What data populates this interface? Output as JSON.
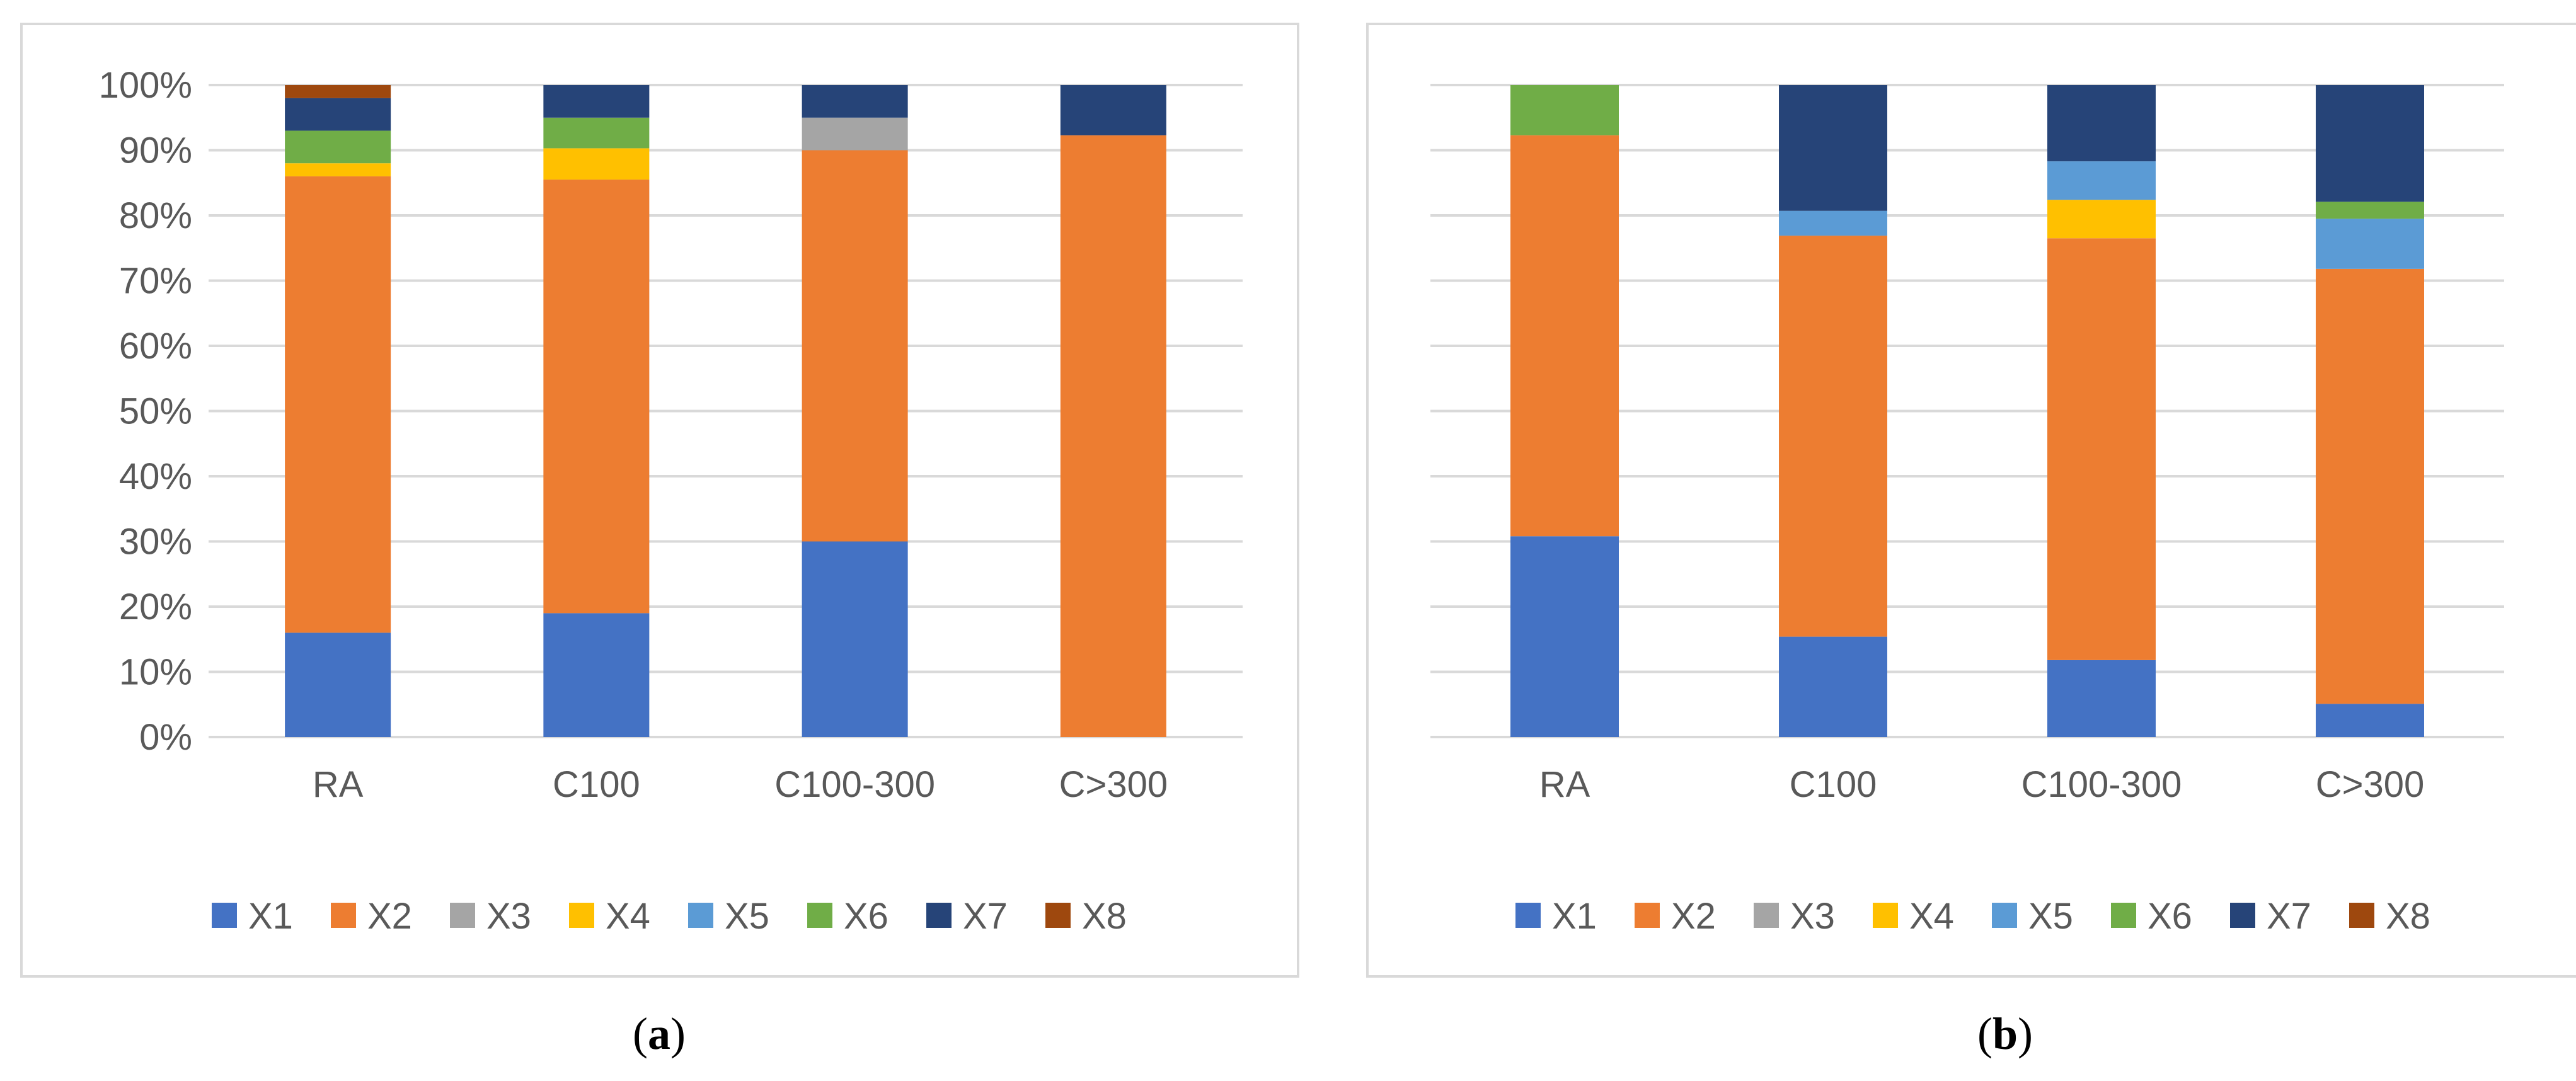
{
  "chart_data": [
    {
      "type": "bar",
      "stacked": "percent",
      "panel_label": "a",
      "categories": [
        "RA",
        "C100",
        "C100-300",
        "C>300"
      ],
      "y_tick_labels": [
        "0%",
        "10%",
        "20%",
        "30%",
        "40%",
        "50%",
        "60%",
        "70%",
        "80%",
        "90%",
        "100%"
      ],
      "ylim": [
        0,
        100
      ],
      "grid": true,
      "legend_position": "bottom",
      "series": [
        {
          "name": "X1",
          "color": "#4472C4",
          "values": [
            16,
            19,
            30,
            0
          ]
        },
        {
          "name": "X2",
          "color": "#ED7D31",
          "values": [
            70,
            66.5,
            60,
            92.3
          ]
        },
        {
          "name": "X3",
          "color": "#A5A5A5",
          "values": [
            0,
            0,
            5,
            0
          ]
        },
        {
          "name": "X4",
          "color": "#FFC000",
          "values": [
            2,
            4.8,
            0,
            0
          ]
        },
        {
          "name": "X5",
          "color": "#5B9BD5",
          "values": [
            0,
            0,
            0,
            0
          ]
        },
        {
          "name": "X6",
          "color": "#70AD47",
          "values": [
            5,
            4.7,
            0,
            0
          ]
        },
        {
          "name": "X7",
          "color": "#264478",
          "values": [
            5,
            5,
            5,
            7.7
          ]
        },
        {
          "name": "X8",
          "color": "#9E480E",
          "values": [
            2,
            0,
            0,
            0
          ]
        }
      ]
    },
    {
      "type": "bar",
      "stacked": "percent",
      "panel_label": "b",
      "categories": [
        "RA",
        "C100",
        "C100-300",
        "C>300"
      ],
      "y_tick_labels": [],
      "ylim": [
        0,
        100
      ],
      "grid": true,
      "legend_position": "bottom",
      "series": [
        {
          "name": "X1",
          "color": "#4472C4",
          "values": [
            30.8,
            15.4,
            11.8,
            5.1
          ]
        },
        {
          "name": "X2",
          "color": "#ED7D31",
          "values": [
            61.5,
            61.5,
            64.7,
            66.7
          ]
        },
        {
          "name": "X3",
          "color": "#A5A5A5",
          "values": [
            0,
            0,
            0,
            0
          ]
        },
        {
          "name": "X4",
          "color": "#FFC000",
          "values": [
            0,
            0,
            5.9,
            0
          ]
        },
        {
          "name": "X5",
          "color": "#5B9BD5",
          "values": [
            0,
            3.8,
            5.9,
            7.7
          ]
        },
        {
          "name": "X6",
          "color": "#70AD47",
          "values": [
            7.7,
            0,
            0,
            2.6
          ]
        },
        {
          "name": "X7",
          "color": "#264478",
          "values": [
            0,
            19.3,
            11.7,
            17.9
          ]
        },
        {
          "name": "X8",
          "color": "#9E480E",
          "values": [
            0,
            0,
            0,
            0
          ]
        }
      ]
    }
  ],
  "colors": {
    "gridline": "#D9D9D9",
    "axis_text": "#595959",
    "panel_border": "#D9D9D9"
  }
}
